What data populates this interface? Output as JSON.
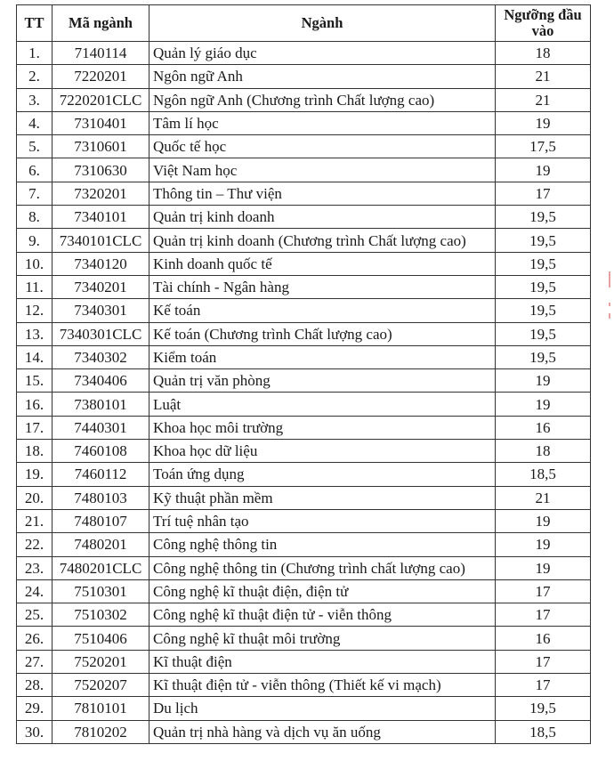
{
  "headers": {
    "tt": "TT",
    "code": "Mã ngành",
    "major": "Ngành",
    "threshold": "Ngưỡng đầu vào"
  },
  "rows": [
    {
      "tt": "1.",
      "code": "7140114",
      "major": "Quản lý giáo dục",
      "threshold": "18"
    },
    {
      "tt": "2.",
      "code": "7220201",
      "major": "Ngôn ngữ Anh",
      "threshold": "21"
    },
    {
      "tt": "3.",
      "code": "7220201CLC",
      "major": "Ngôn ngữ Anh (Chương trình Chất lượng cao)",
      "threshold": "21"
    },
    {
      "tt": "4.",
      "code": "7310401",
      "major": "Tâm lí học",
      "threshold": "19"
    },
    {
      "tt": "5.",
      "code": "7310601",
      "major": "Quốc tế học",
      "threshold": "17,5"
    },
    {
      "tt": "6.",
      "code": "7310630",
      "major": "Việt Nam học",
      "threshold": "19"
    },
    {
      "tt": "7.",
      "code": "7320201",
      "major": "Thông tin – Thư viện",
      "threshold": "17"
    },
    {
      "tt": "8.",
      "code": "7340101",
      "major": "Quản trị kinh doanh",
      "threshold": "19,5"
    },
    {
      "tt": "9.",
      "code": "7340101CLC",
      "major": "Quản trị kinh doanh (Chương trình Chất lượng cao)",
      "threshold": "19,5"
    },
    {
      "tt": "10.",
      "code": "7340120",
      "major": "Kinh doanh quốc tế",
      "threshold": "19,5"
    },
    {
      "tt": "11.",
      "code": "7340201",
      "major": "Tài chính - Ngân hàng",
      "threshold": "19,5"
    },
    {
      "tt": "12.",
      "code": "7340301",
      "major": "Kế toán",
      "threshold": "19,5"
    },
    {
      "tt": "13.",
      "code": "7340301CLC",
      "major": "Kế toán (Chương trình Chất lượng cao)",
      "threshold": "19,5"
    },
    {
      "tt": "14.",
      "code": "7340302",
      "major": "Kiểm toán",
      "threshold": "19,5"
    },
    {
      "tt": "15.",
      "code": "7340406",
      "major": "Quản trị văn phòng",
      "threshold": "19"
    },
    {
      "tt": "16.",
      "code": "7380101",
      "major": "Luật",
      "threshold": "19"
    },
    {
      "tt": "17.",
      "code": "7440301",
      "major": "Khoa học môi trường",
      "threshold": "16"
    },
    {
      "tt": "18.",
      "code": "7460108",
      "major": "Khoa học dữ liệu",
      "threshold": "18"
    },
    {
      "tt": "19.",
      "code": "7460112",
      "major": "Toán ứng dụng",
      "threshold": "18,5"
    },
    {
      "tt": "20.",
      "code": "7480103",
      "major": "Kỹ thuật phần mềm",
      "threshold": "21"
    },
    {
      "tt": "21.",
      "code": "7480107",
      "major": "Trí tuệ nhân tạo",
      "threshold": "19"
    },
    {
      "tt": "22.",
      "code": "7480201",
      "major": "Công nghệ thông tin",
      "threshold": "19"
    },
    {
      "tt": "23.",
      "code": "7480201CLC",
      "major": "Công nghệ thông tin (Chương trình chất lượng cao)",
      "threshold": "19"
    },
    {
      "tt": "24.",
      "code": "7510301",
      "major": "Công nghệ kĩ thuật điện, điện tử",
      "threshold": "17"
    },
    {
      "tt": "25.",
      "code": "7510302",
      "major": "Công nghệ kĩ thuật điện tử - viễn thông",
      "threshold": "17"
    },
    {
      "tt": "26.",
      "code": "7510406",
      "major": "Công nghệ kĩ thuật môi trường",
      "threshold": "16"
    },
    {
      "tt": "27.",
      "code": "7520201",
      "major": "Kĩ thuật điện",
      "threshold": "17"
    },
    {
      "tt": "28.",
      "code": "7520207",
      "major": "Kĩ thuật điện tử - viễn thông (Thiết kế vi mạch)",
      "threshold": "17"
    },
    {
      "tt": "29.",
      "code": "7810101",
      "major": "Du lịch",
      "threshold": "19,5"
    },
    {
      "tt": "30.",
      "code": "7810202",
      "major": "Quản trị nhà hàng và dịch vụ ăn uống",
      "threshold": "18,5"
    }
  ]
}
